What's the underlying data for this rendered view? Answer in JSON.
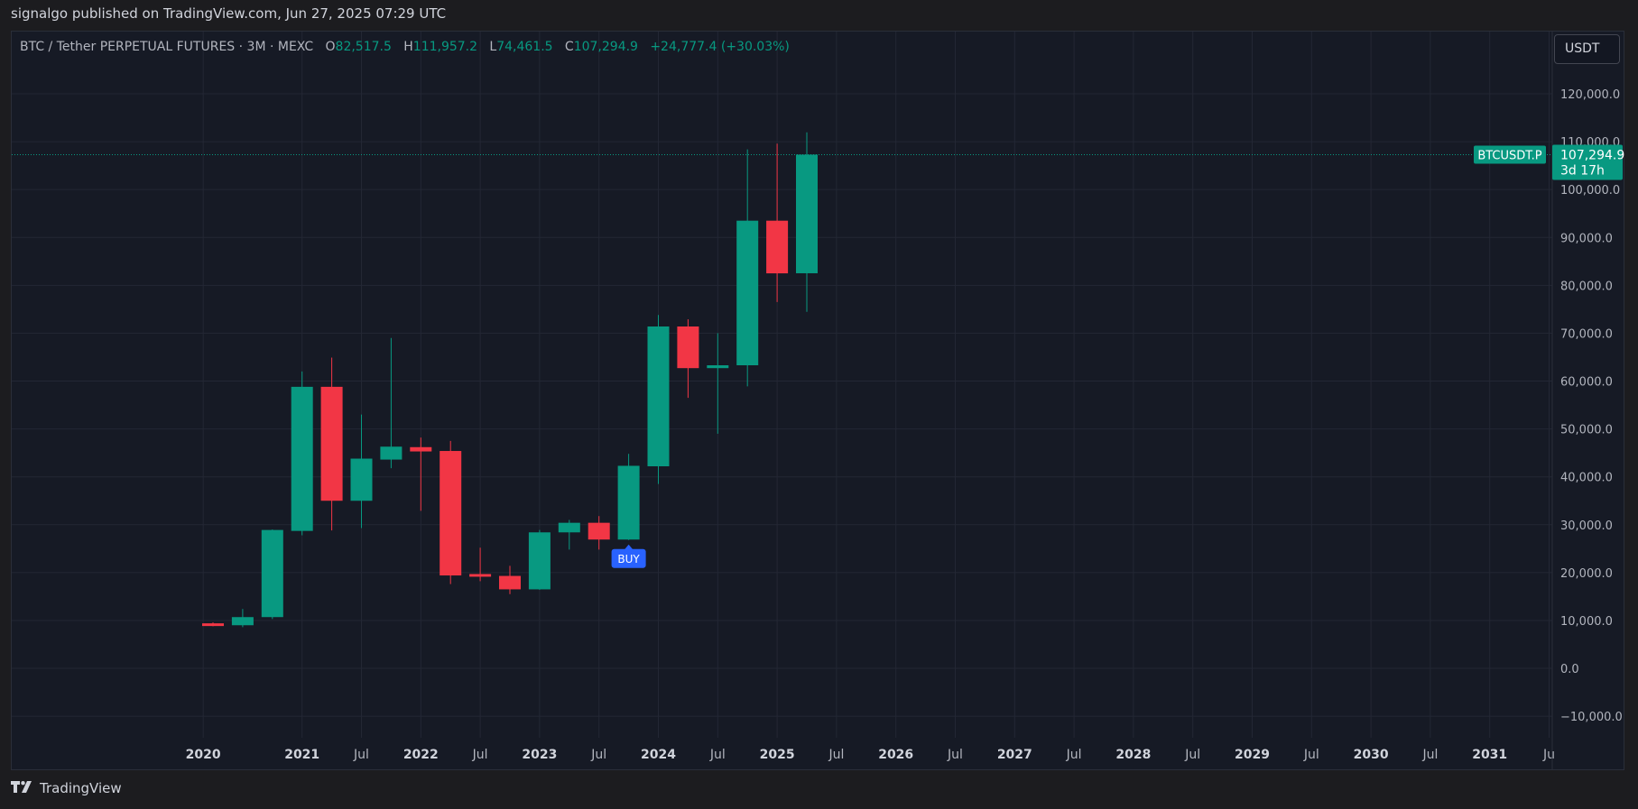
{
  "header": {
    "published_text": "signalgo published on TradingView.com, Jun 27, 2025 07:29 UTC"
  },
  "symbol_line": {
    "symbol": "BTC / Tether PERPETUAL FUTURES · 3M · MEXC",
    "open_label": "O",
    "open_value": "82,517.5",
    "high_label": "H",
    "high_value": "111,957.2",
    "low_label": "L",
    "low_value": "74,461.5",
    "close_label": "C",
    "close_value": "107,294.9",
    "change_value": "+24,777.4 (+30.03%)"
  },
  "currency_button": {
    "label": "USDT"
  },
  "price_label": {
    "ticker": "BTCUSDT.P",
    "price": "107,294.9",
    "countdown": "3d 17h"
  },
  "signal": {
    "label": "BUY"
  },
  "footer": {
    "brand": "TradingView"
  },
  "colors": {
    "up": "#089981",
    "down": "#f23645",
    "background": "#161a25",
    "grid": "#232734",
    "signal": "#2962ff"
  },
  "chart_data": {
    "type": "candlestick",
    "y_ticks": [
      -10000,
      0,
      10000,
      20000,
      30000,
      40000,
      50000,
      60000,
      70000,
      80000,
      90000,
      100000,
      110000,
      120000
    ],
    "y_tick_labels": [
      "−10,000.0",
      "0.0",
      "10,000.0",
      "20,000.0",
      "30,000.0",
      "40,000.0",
      "50,000.0",
      "60,000.0",
      "70,000.0",
      "80,000.0",
      "90,000.0",
      "100,000.0",
      "110,000.0",
      "120,000.0"
    ],
    "ylim": [
      -14500,
      133000
    ],
    "x_ticks": [
      {
        "label": "2020",
        "idx": -0.33,
        "year": true
      },
      {
        "label": "2021",
        "idx": 3,
        "year": true
      },
      {
        "label": "Jul",
        "idx": 5,
        "year": false
      },
      {
        "label": "2022",
        "idx": 7,
        "year": true
      },
      {
        "label": "Jul",
        "idx": 9,
        "year": false
      },
      {
        "label": "2023",
        "idx": 11,
        "year": true
      },
      {
        "label": "Jul",
        "idx": 13,
        "year": false
      },
      {
        "label": "2024",
        "idx": 15,
        "year": true
      },
      {
        "label": "Jul",
        "idx": 17,
        "year": false
      },
      {
        "label": "2025",
        "idx": 19,
        "year": true
      },
      {
        "label": "Jul",
        "idx": 21,
        "year": false
      },
      {
        "label": "2026",
        "idx": 23,
        "year": true
      },
      {
        "label": "Jul",
        "idx": 25,
        "year": false
      },
      {
        "label": "2027",
        "idx": 27,
        "year": true
      },
      {
        "label": "Jul",
        "idx": 29,
        "year": false
      },
      {
        "label": "2028",
        "idx": 31,
        "year": true
      },
      {
        "label": "Jul",
        "idx": 33,
        "year": false
      },
      {
        "label": "2029",
        "idx": 35,
        "year": true
      },
      {
        "label": "Jul",
        "idx": 37,
        "year": false
      },
      {
        "label": "2030",
        "idx": 39,
        "year": true
      },
      {
        "label": "Jul",
        "idx": 41,
        "year": false
      },
      {
        "label": "2031",
        "idx": 43,
        "year": true
      },
      {
        "label": "Ju",
        "idx": 45,
        "year": false
      }
    ],
    "candles": [
      {
        "period": "2019-10",
        "o": 9400,
        "h": 9600,
        "l": 8800,
        "c": 9000
      },
      {
        "period": "2020-01",
        "o": 9000,
        "h": 12400,
        "l": 8600,
        "c": 10700
      },
      {
        "period": "2020-04",
        "o": 10700,
        "h": 29000,
        "l": 10300,
        "c": 28900
      },
      {
        "period": "2020-07",
        "o": 28700,
        "h": 62000,
        "l": 27800,
        "c": 58800
      },
      {
        "period": "2020-10",
        "o": 58800,
        "h": 64900,
        "l": 28800,
        "c": 35000
      },
      {
        "period": "2021-01",
        "o": 35000,
        "h": 53000,
        "l": 29300,
        "c": 43800
      },
      {
        "period": "2021-04",
        "o": 43600,
        "h": 69000,
        "l": 41800,
        "c": 46300
      },
      {
        "period": "2021-07",
        "o": 46200,
        "h": 48200,
        "l": 32900,
        "c": 45300
      },
      {
        "period": "2021-10",
        "o": 45400,
        "h": 47500,
        "l": 17600,
        "c": 19400
      },
      {
        "period": "2022-01",
        "o": 19700,
        "h": 25200,
        "l": 18200,
        "c": 19200
      },
      {
        "period": "2022-04",
        "o": 19300,
        "h": 21400,
        "l": 15500,
        "c": 16500
      },
      {
        "period": "2022-07",
        "o": 16500,
        "h": 28900,
        "l": 16400,
        "c": 28400
      },
      {
        "period": "2022-10",
        "o": 28400,
        "h": 31000,
        "l": 24800,
        "c": 30400
      },
      {
        "period": "2023-01",
        "o": 30400,
        "h": 31800,
        "l": 24800,
        "c": 26900
      },
      {
        "period": "2023-04",
        "o": 26900,
        "h": 44800,
        "l": 26800,
        "c": 42300
      },
      {
        "period": "2023-07",
        "o": 42200,
        "h": 73800,
        "l": 38500,
        "c": 71400
      },
      {
        "period": "2023-10",
        "o": 71400,
        "h": 72900,
        "l": 56500,
        "c": 62700
      },
      {
        "period": "2024-01",
        "o": 62700,
        "h": 70000,
        "l": 49000,
        "c": 63300
      },
      {
        "period": "2024-04",
        "o": 63300,
        "h": 108400,
        "l": 58900,
        "c": 93500
      },
      {
        "period": "2024-07",
        "o": 93500,
        "h": 109600,
        "l": 76500,
        "c": 82500
      },
      {
        "period": "2024-10",
        "o": 82517.5,
        "h": 111957.2,
        "l": 74461.5,
        "c": 107294.9
      }
    ],
    "current_price": 107294.9,
    "signals": [
      {
        "label": "BUY",
        "candle_index": 14,
        "price": 26800
      }
    ],
    "grid": true,
    "scale_position": "right"
  }
}
